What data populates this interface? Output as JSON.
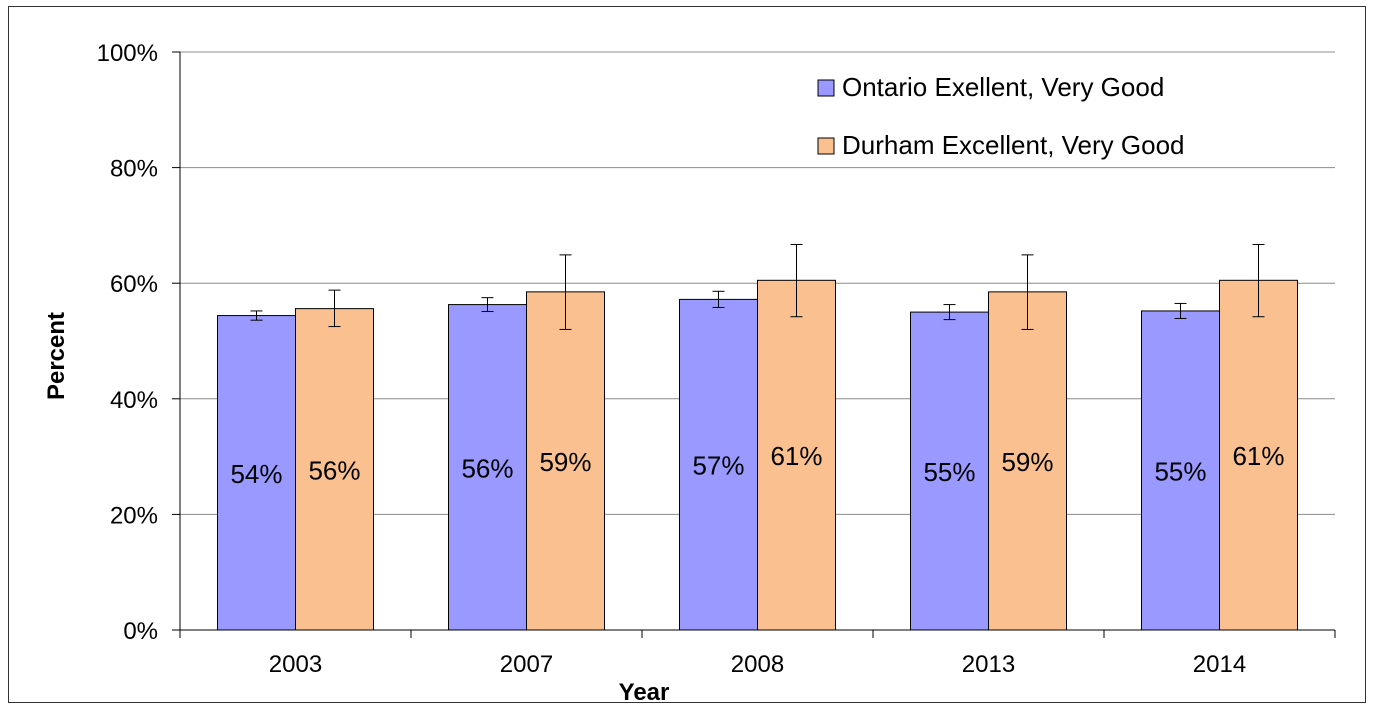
{
  "chart_data": {
    "type": "bar",
    "title": "",
    "xlabel": "Year",
    "ylabel": "Percent",
    "ylim": [
      0,
      100
    ],
    "yticks": [
      "0%",
      "20%",
      "40%",
      "60%",
      "80%",
      "100%"
    ],
    "categories": [
      "2003",
      "2007",
      "2008",
      "2013",
      "2014"
    ],
    "grid": "horizontal",
    "legend_position": "top-right",
    "series": [
      {
        "name": "Ontario Exellent, Very Good",
        "color": "#9999ff",
        "values": [
          54.4,
          56.3,
          57.2,
          55.0,
          55.2
        ],
        "error_low": [
          53.6,
          55.1,
          55.8,
          53.7,
          53.9
        ],
        "error_high": [
          55.2,
          57.5,
          58.6,
          56.3,
          56.5
        ],
        "labels": [
          "54%",
          "56%",
          "57%",
          "55%",
          "55%"
        ]
      },
      {
        "name": "Durham Excellent, Very Good",
        "color": "#fac090",
        "values": [
          55.6,
          58.5,
          60.5,
          58.5,
          60.5
        ],
        "error_low": [
          52.5,
          52.0,
          54.2,
          52.0,
          54.2
        ],
        "error_high": [
          58.8,
          64.9,
          66.7,
          64.9,
          66.7
        ],
        "labels": [
          "56%",
          "59%",
          "61%",
          "59%",
          "61%"
        ]
      }
    ]
  }
}
